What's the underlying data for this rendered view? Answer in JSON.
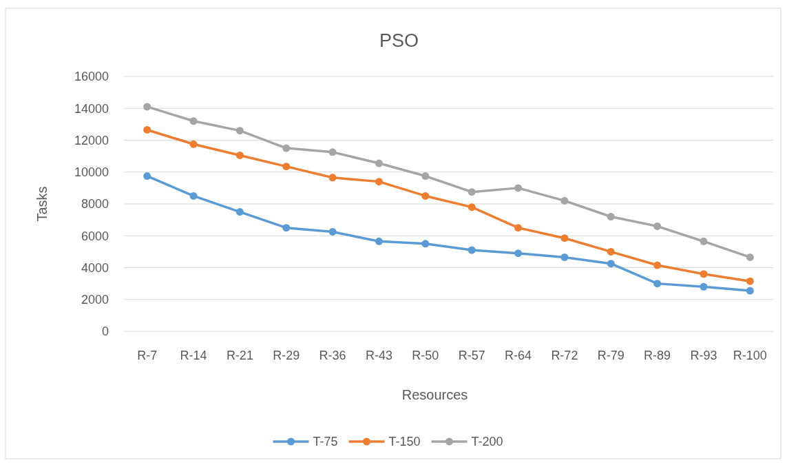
{
  "chart_data": {
    "type": "line",
    "title": "PSO",
    "xlabel": "Resources",
    "ylabel": "Tasks",
    "categories": [
      "R-7",
      "R-14",
      "R-21",
      "R-29",
      "R-36",
      "R-43",
      "R-50",
      "R-57",
      "R-64",
      "R-72",
      "R-79",
      "R-89",
      "R-93",
      "R-100"
    ],
    "series": [
      {
        "name": "T-75",
        "color": "#5b9bd5",
        "values": [
          9750,
          8500,
          7500,
          6500,
          6250,
          5650,
          5500,
          5100,
          4900,
          4650,
          4250,
          3000,
          2800,
          2550
        ]
      },
      {
        "name": "T-150",
        "color": "#ed7d31",
        "values": [
          12650,
          11750,
          11050,
          10350,
          9650,
          9400,
          8500,
          7800,
          6500,
          5850,
          5000,
          4150,
          3600,
          3150
        ]
      },
      {
        "name": "T-200",
        "color": "#a5a5a5",
        "values": [
          14100,
          13200,
          12600,
          11500,
          11250,
          10550,
          9750,
          8750,
          9000,
          8200,
          7200,
          6600,
          5650,
          4650
        ]
      }
    ],
    "ylim": [
      0,
      16000
    ],
    "yticks": [
      0,
      2000,
      4000,
      6000,
      8000,
      10000,
      12000,
      14000,
      16000
    ],
    "grid": "y",
    "legend": "bottom",
    "marker": "circle",
    "line_style": "solid"
  }
}
